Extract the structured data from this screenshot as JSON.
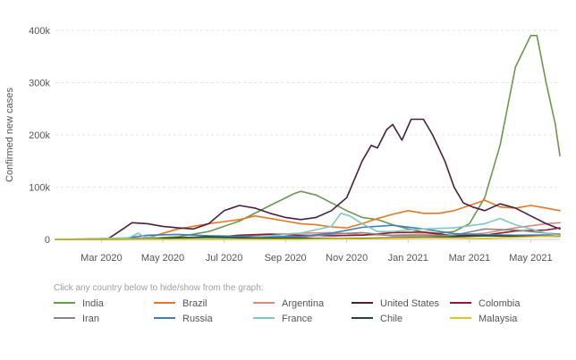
{
  "chart_data": {
    "type": "line",
    "ylabel": "Confirmed new cases",
    "yticks": [
      {
        "value": 0,
        "label": "0"
      },
      {
        "value": 100000,
        "label": "100k"
      },
      {
        "value": 200000,
        "label": "200k"
      },
      {
        "value": 300000,
        "label": "300k"
      },
      {
        "value": 400000,
        "label": "400k"
      }
    ],
    "xticks": [
      {
        "value": 1.5,
        "label": "Mar 2020"
      },
      {
        "value": 3.5,
        "label": "May 2020"
      },
      {
        "value": 5.5,
        "label": "Jul 2020"
      },
      {
        "value": 7.5,
        "label": "Sep 2020"
      },
      {
        "value": 9.5,
        "label": "Nov 2020"
      },
      {
        "value": 11.5,
        "label": "Jan 2021"
      },
      {
        "value": 13.5,
        "label": "Mar 2021"
      },
      {
        "value": 15.5,
        "label": "May 2021"
      }
    ],
    "xlim": [
      0,
      16.45
    ],
    "ylim": [
      0,
      400000
    ],
    "grid": true,
    "legend_hint": "Click any country below to hide/show from the graph:",
    "series": [
      {
        "name": "India",
        "color": "#6a994e",
        "points": [
          [
            0,
            0
          ],
          [
            2,
            100
          ],
          [
            3,
            2000
          ],
          [
            4,
            5000
          ],
          [
            5,
            15000
          ],
          [
            6,
            35000
          ],
          [
            7,
            65000
          ],
          [
            7.8,
            88000
          ],
          [
            8,
            92000
          ],
          [
            8.5,
            85000
          ],
          [
            9,
            70000
          ],
          [
            9.5,
            55000
          ],
          [
            10,
            42000
          ],
          [
            10.5,
            38000
          ],
          [
            11,
            28000
          ],
          [
            11.5,
            20000
          ],
          [
            12,
            14000
          ],
          [
            12.5,
            12000
          ],
          [
            13,
            15000
          ],
          [
            13.5,
            30000
          ],
          [
            14,
            80000
          ],
          [
            14.5,
            180000
          ],
          [
            15,
            330000
          ],
          [
            15.5,
            390000
          ],
          [
            15.7,
            390000
          ],
          [
            16,
            300000
          ],
          [
            16.3,
            220000
          ],
          [
            16.45,
            160000
          ]
        ]
      },
      {
        "name": "Brazil",
        "color": "#e87722",
        "points": [
          [
            0,
            0
          ],
          [
            2,
            100
          ],
          [
            3,
            3000
          ],
          [
            4,
            20000
          ],
          [
            5,
            30000
          ],
          [
            6,
            38000
          ],
          [
            6.5,
            45000
          ],
          [
            7,
            40000
          ],
          [
            7.5,
            35000
          ],
          [
            8,
            30000
          ],
          [
            8.5,
            28000
          ],
          [
            9,
            24000
          ],
          [
            9.5,
            22000
          ],
          [
            10,
            30000
          ],
          [
            10.5,
            40000
          ],
          [
            11,
            48000
          ],
          [
            11.5,
            55000
          ],
          [
            12,
            50000
          ],
          [
            12.5,
            50000
          ],
          [
            13,
            55000
          ],
          [
            13.5,
            65000
          ],
          [
            14,
            75000
          ],
          [
            14.5,
            62000
          ],
          [
            15,
            60000
          ],
          [
            15.5,
            65000
          ],
          [
            16,
            60000
          ],
          [
            16.45,
            55000
          ]
        ]
      },
      {
        "name": "Argentina",
        "color": "#d98b7e",
        "points": [
          [
            0,
            0
          ],
          [
            3,
            500
          ],
          [
            5,
            3000
          ],
          [
            6,
            5000
          ],
          [
            7,
            9000
          ],
          [
            8,
            12000
          ],
          [
            9,
            13000
          ],
          [
            10,
            9000
          ],
          [
            11,
            8000
          ],
          [
            12,
            10000
          ],
          [
            13,
            8000
          ],
          [
            14,
            12000
          ],
          [
            15,
            22000
          ],
          [
            16,
            30000
          ],
          [
            16.45,
            32000
          ]
        ]
      },
      {
        "name": "United States",
        "color": "#4a2040",
        "points": [
          [
            0,
            0
          ],
          [
            1.7,
            500
          ],
          [
            2.2,
            20000
          ],
          [
            2.5,
            32000
          ],
          [
            3,
            30000
          ],
          [
            3.5,
            25000
          ],
          [
            4,
            22000
          ],
          [
            4.5,
            20000
          ],
          [
            5,
            30000
          ],
          [
            5.5,
            55000
          ],
          [
            6,
            65000
          ],
          [
            6.5,
            60000
          ],
          [
            7,
            50000
          ],
          [
            7.5,
            42000
          ],
          [
            8,
            38000
          ],
          [
            8.5,
            42000
          ],
          [
            9,
            55000
          ],
          [
            9.5,
            80000
          ],
          [
            10,
            150000
          ],
          [
            10.3,
            180000
          ],
          [
            10.5,
            175000
          ],
          [
            10.8,
            210000
          ],
          [
            11,
            220000
          ],
          [
            11.3,
            190000
          ],
          [
            11.6,
            230000
          ],
          [
            12,
            230000
          ],
          [
            12.3,
            200000
          ],
          [
            12.7,
            150000
          ],
          [
            13,
            100000
          ],
          [
            13.3,
            70000
          ],
          [
            13.6,
            62000
          ],
          [
            14,
            55000
          ],
          [
            14.5,
            68000
          ],
          [
            15,
            60000
          ],
          [
            15.5,
            45000
          ],
          [
            16,
            30000
          ],
          [
            16.45,
            20000
          ]
        ]
      },
      {
        "name": "Colombia",
        "color": "#8b1a2f",
        "points": [
          [
            0,
            0
          ],
          [
            4,
            500
          ],
          [
            5,
            3000
          ],
          [
            6,
            8000
          ],
          [
            7,
            10000
          ],
          [
            8,
            8000
          ],
          [
            9,
            7000
          ],
          [
            10,
            8000
          ],
          [
            11,
            13000
          ],
          [
            12,
            14000
          ],
          [
            13,
            7000
          ],
          [
            14,
            8000
          ],
          [
            15,
            16000
          ],
          [
            16,
            18000
          ],
          [
            16.45,
            22000
          ]
        ]
      },
      {
        "name": "Iran",
        "color": "#888888",
        "points": [
          [
            0,
            0
          ],
          [
            1.5,
            500
          ],
          [
            2,
            2000
          ],
          [
            3,
            2000
          ],
          [
            4,
            2500
          ],
          [
            5,
            2500
          ],
          [
            6,
            2500
          ],
          [
            7,
            3000
          ],
          [
            8,
            4000
          ],
          [
            9,
            10000
          ],
          [
            10,
            13000
          ],
          [
            11,
            7000
          ],
          [
            12,
            7000
          ],
          [
            13,
            8000
          ],
          [
            14,
            20000
          ],
          [
            15,
            18000
          ],
          [
            16,
            12000
          ],
          [
            16.45,
            10000
          ]
        ]
      },
      {
        "name": "Russia",
        "color": "#3b7fbf",
        "points": [
          [
            0,
            0
          ],
          [
            2,
            500
          ],
          [
            3,
            8000
          ],
          [
            4,
            9500
          ],
          [
            5,
            7000
          ],
          [
            6,
            6000
          ],
          [
            7,
            5000
          ],
          [
            8,
            6000
          ],
          [
            9,
            12000
          ],
          [
            10,
            23000
          ],
          [
            11,
            27000
          ],
          [
            12,
            20000
          ],
          [
            13,
            11000
          ],
          [
            14,
            9000
          ],
          [
            15,
            8000
          ],
          [
            16,
            8500
          ],
          [
            16.45,
            9000
          ]
        ]
      },
      {
        "name": "France",
        "color": "#7ec8c0",
        "points": [
          [
            0,
            0
          ],
          [
            2.4,
            3000
          ],
          [
            2.7,
            12000
          ],
          [
            2.9,
            5000
          ],
          [
            3.5,
            2000
          ],
          [
            4,
            1000
          ],
          [
            5,
            800
          ],
          [
            6,
            2000
          ],
          [
            7,
            7000
          ],
          [
            8,
            12000
          ],
          [
            9,
            25000
          ],
          [
            9.3,
            50000
          ],
          [
            9.6,
            45000
          ],
          [
            10,
            30000
          ],
          [
            10.5,
            15000
          ],
          [
            11,
            15000
          ],
          [
            11.5,
            18000
          ],
          [
            12,
            20000
          ],
          [
            13,
            22000
          ],
          [
            14,
            30000
          ],
          [
            14.5,
            40000
          ],
          [
            15,
            28000
          ],
          [
            15.5,
            20000
          ],
          [
            16,
            12000
          ],
          [
            16.45,
            8000
          ]
        ]
      },
      {
        "name": "Chile",
        "color": "#1f4d2b",
        "points": [
          [
            0,
            0
          ],
          [
            3,
            500
          ],
          [
            4,
            3000
          ],
          [
            5,
            5000
          ],
          [
            6,
            3000
          ],
          [
            7,
            2000
          ],
          [
            8,
            2000
          ],
          [
            9,
            1500
          ],
          [
            10,
            2000
          ],
          [
            11,
            3000
          ],
          [
            12,
            4000
          ],
          [
            13,
            5000
          ],
          [
            14,
            7000
          ],
          [
            15,
            6000
          ],
          [
            16,
            6000
          ],
          [
            16.45,
            6000
          ]
        ]
      },
      {
        "name": "Malaysia",
        "color": "#e8c21c",
        "points": [
          [
            0,
            0
          ],
          [
            5,
            100
          ],
          [
            8,
            200
          ],
          [
            9,
            900
          ],
          [
            10,
            1000
          ],
          [
            11,
            2000
          ],
          [
            12,
            3000
          ],
          [
            13,
            2500
          ],
          [
            14,
            2000
          ],
          [
            15,
            4000
          ],
          [
            16,
            6000
          ],
          [
            16.45,
            7000
          ]
        ]
      }
    ]
  }
}
